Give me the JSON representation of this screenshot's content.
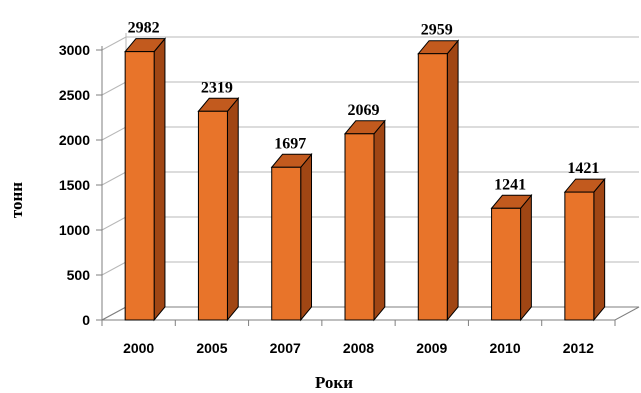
{
  "chart_data": {
    "type": "bar",
    "style": "3d-column",
    "categories": [
      "2000",
      "2005",
      "2007",
      "2008",
      "2009",
      "2010",
      "2012"
    ],
    "values": [
      2982,
      2319,
      1697,
      2069,
      2959,
      1241,
      1421
    ],
    "data_labels": [
      "2982",
      "2319",
      "1697",
      "2069",
      "2959",
      "1241",
      "1421"
    ],
    "title": "",
    "xlabel": "Роки",
    "ylabel": "тонн",
    "ylim": [
      0,
      3000
    ],
    "yticks": [
      "0",
      "500",
      "1000",
      "1500",
      "2000",
      "2500",
      "3000"
    ],
    "grid": true,
    "legend": "none"
  },
  "colors": {
    "bar_front": "#E8742A",
    "bar_top": "#C25A1E",
    "bar_side": "#A04614",
    "bar_outline": "#000000",
    "grid": "#B8B8B8",
    "axis": "#7F7F7F"
  }
}
